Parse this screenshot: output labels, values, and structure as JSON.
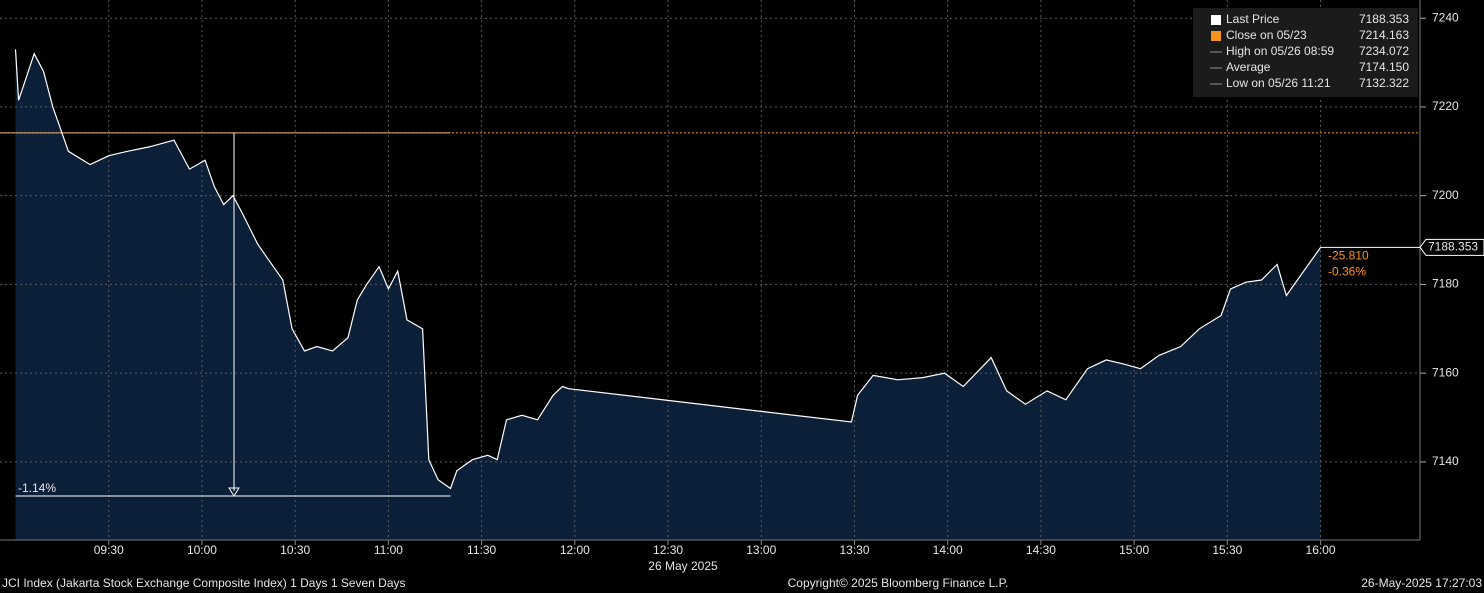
{
  "chart_data": {
    "type": "line",
    "series": [
      {
        "name": "Last Price",
        "color": "#ffffff",
        "fill": "#0c1f38",
        "values": [
          7233,
          7221.5,
          7232,
          7228,
          7220,
          7210,
          7207,
          7209,
          7210,
          7211,
          7212.5,
          7206,
          7208,
          7202,
          7198,
          7200,
          7196,
          7189,
          7184,
          7181,
          7170,
          7165,
          7166,
          7165,
          7168,
          7176.5,
          7180,
          7184,
          7179,
          7183,
          7172,
          7170,
          7140.5,
          7136,
          7134,
          7138,
          7140.5,
          7141.5,
          7140.5,
          7149.5,
          7150.5,
          7149.5,
          7155,
          7157,
          7156.5,
          7149,
          7155,
          7159.5,
          7158.5,
          7159,
          7160,
          7157,
          7163.5,
          7156,
          7153,
          7156,
          7154,
          7161,
          7163,
          7162,
          7161,
          7164,
          7166,
          7170,
          7173,
          7179,
          7180.5,
          7181,
          7184.5,
          7177.5,
          7188.353
        ]
      }
    ],
    "x": [
      "09:00",
      "09:01",
      "09:06",
      "09:09",
      "09:12",
      "09:17",
      "09:24",
      "09:30",
      "09:36",
      "09:43",
      "09:51",
      "09:56",
      "10:01",
      "10:04",
      "10:07",
      "10:10",
      "10:13",
      "10:18",
      "10:23",
      "10:26",
      "10:29",
      "10:33",
      "10:37",
      "10:42",
      "10:47",
      "10:50",
      "10:53",
      "10:57",
      "11:00",
      "11:03",
      "11:06",
      "11:11",
      "11:13",
      "11:16",
      "11:20",
      "11:22",
      "11:27",
      "11:32",
      "11:35",
      "11:38",
      "11:43",
      "11:48",
      "11:53",
      "11:56",
      "11:58",
      "13:29",
      "13:31",
      "13:36",
      "13:44",
      "13:52",
      "13:59",
      "14:05",
      "14:14",
      "14:19",
      "14:25",
      "14:32",
      "14:38",
      "14:45",
      "14:51",
      "14:57",
      "15:02",
      "15:08",
      "15:15",
      "15:21",
      "15:28",
      "15:31",
      "15:36",
      "15:41",
      "15:46",
      "15:49",
      "16:00"
    ],
    "xlim": [
      "08:55",
      "16:32"
    ],
    "xticks": [
      "09:30",
      "10:00",
      "10:30",
      "11:00",
      "11:30",
      "12:00",
      "12:30",
      "13:00",
      "13:30",
      "14:00",
      "14:30",
      "15:00",
      "15:30",
      "16:00"
    ],
    "x_label": "26 May 2025",
    "ylim": [
      7122.4,
      7244.1
    ],
    "yticks": [
      7140,
      7160,
      7180,
      7200,
      7220,
      7240
    ],
    "grid": true,
    "stats": [
      {
        "name": "Close on 05/23",
        "value": 7214.163,
        "color": "#f7941d"
      },
      {
        "name": "High on 05/26 08:59",
        "value": 7234.072
      },
      {
        "name": "Average",
        "value": 7174.15,
        "value_label": "7174.150"
      },
      {
        "name": "Low on 05/26 11:21",
        "value": 7132.322
      }
    ],
    "drawdown": {
      "value": -1.14,
      "value_label": "-1.14%"
    },
    "change": {
      "value": -25.81,
      "value_label": "-25.810"
    },
    "change_pct": {
      "value": -0.36,
      "value_label": "-0.36%"
    },
    "footer": {
      "left": "JCI Index (Jakarta Stock Exchange Composite Index) 1 Days 1 Seven Days",
      "center": "Copyright© 2025 Bloomberg Finance L.P.",
      "right": "26-May-2025 17:27:03"
    }
  }
}
